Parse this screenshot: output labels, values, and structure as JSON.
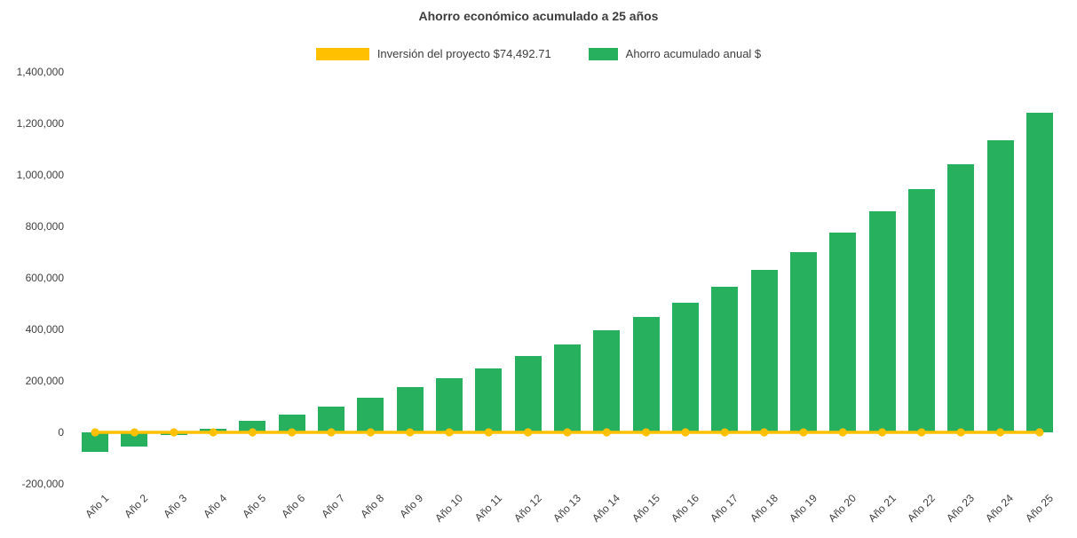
{
  "chart_data": {
    "type": "bar",
    "title": "Ahorro económico acumulado a 25 años",
    "categories": [
      "Año 1",
      "Año 2",
      "Año 3",
      "Año 4",
      "Año 5",
      "Año 6",
      "Año 7",
      "Año 8",
      "Año 9",
      "Año 10",
      "Año 11",
      "Año 12",
      "Año 13",
      "Año 14",
      "Año 15",
      "Año 16",
      "Año 17",
      "Año 18",
      "Año 19",
      "Año 20",
      "Año 21",
      "Año 22",
      "Año 23",
      "Año 24",
      "Año 25"
    ],
    "series": [
      {
        "name": "Inversión del proyecto $74,492.71",
        "type": "line",
        "color": "#ffc000",
        "values": [
          0,
          0,
          0,
          0,
          0,
          0,
          0,
          0,
          0,
          0,
          0,
          0,
          0,
          0,
          0,
          0,
          0,
          0,
          0,
          0,
          0,
          0,
          0,
          0,
          0
        ]
      },
      {
        "name": "Ahorro acumulado anual $",
        "type": "bar",
        "color": "#27b05e",
        "values": [
          -75000,
          -55000,
          -10000,
          15000,
          45000,
          70000,
          100000,
          135000,
          175000,
          210000,
          250000,
          295000,
          340000,
          395000,
          450000,
          505000,
          565000,
          630000,
          700000,
          775000,
          860000,
          945000,
          1040000,
          1135000,
          1240000
        ]
      }
    ],
    "xlabel": "",
    "ylabel": "",
    "ylim": [
      -200000,
      1400000
    ],
    "ytick_step": 200000,
    "grid": false,
    "legend_position": "top"
  }
}
